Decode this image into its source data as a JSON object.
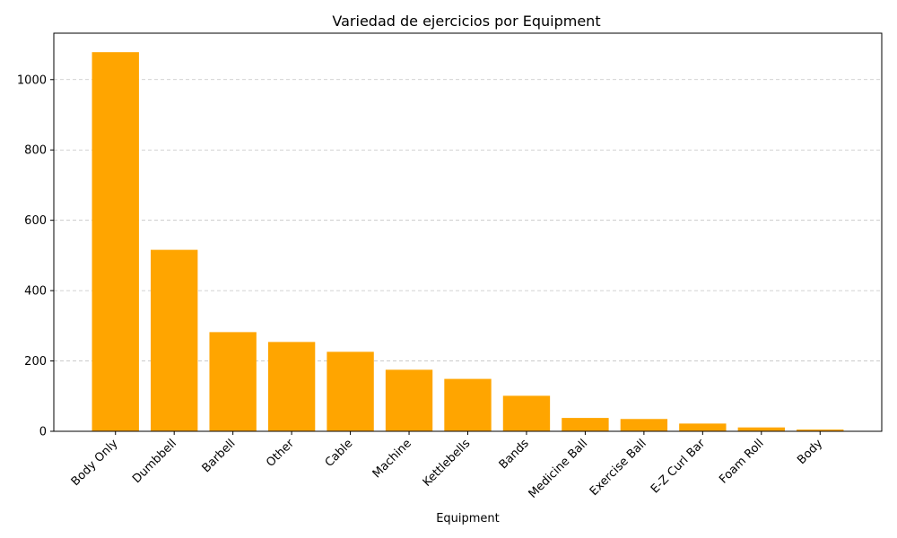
{
  "chart_data": {
    "type": "bar",
    "title": "Variedad de ejercicios por Equipment",
    "xlabel": "Equipment",
    "ylabel": "",
    "categories": [
      "Body Only",
      "Dumbbell",
      "Barbell",
      "Other",
      "Cable",
      "Machine",
      "Kettlebells",
      "Bands",
      "Medicine Ball",
      "Exercise Ball",
      "E-Z Curl Bar",
      "Foam Roll",
      "Body"
    ],
    "values": [
      1078,
      516,
      282,
      254,
      226,
      175,
      149,
      101,
      38,
      35,
      22,
      11,
      5
    ],
    "ylim": [
      0,
      1132
    ],
    "yticks": [
      0,
      200,
      400,
      600,
      800,
      1000
    ],
    "grid": "y-dashed",
    "bar_color": "#ffa500"
  }
}
